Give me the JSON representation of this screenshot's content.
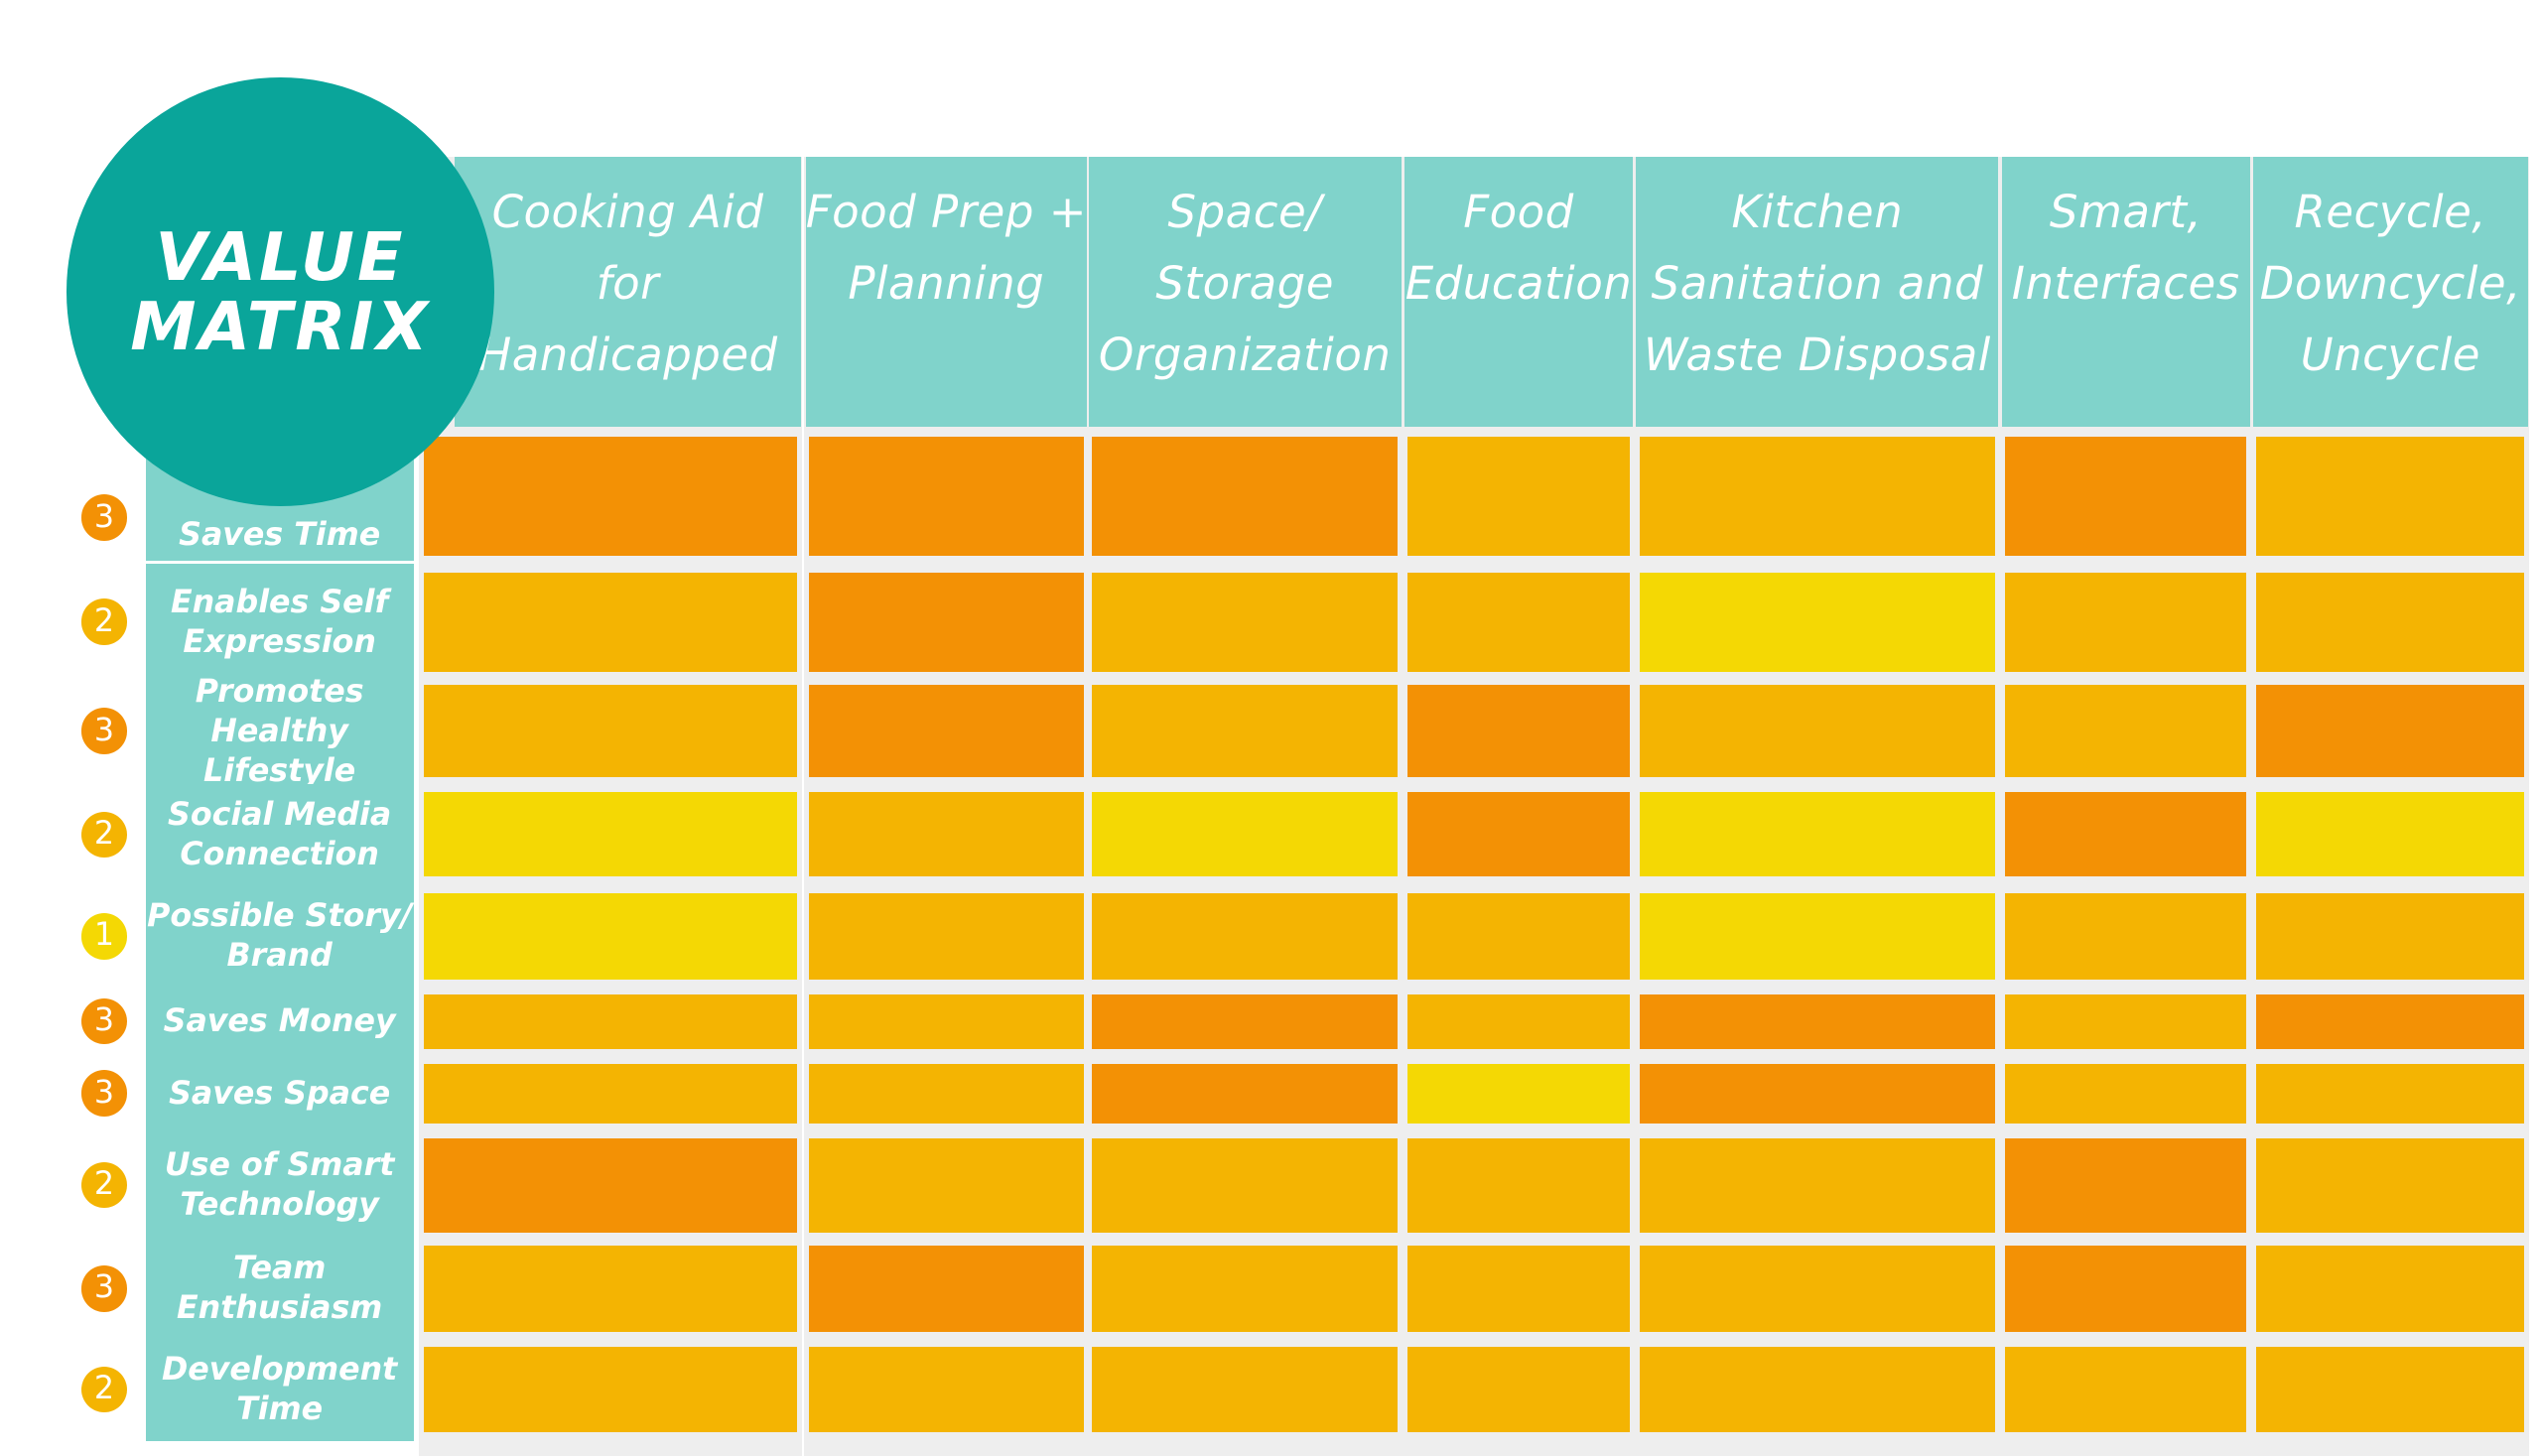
{
  "title": "VALUE\nMATRIX",
  "colors": {
    "score_1": "#f4d804",
    "score_2": "#f4b402",
    "score_3": "#f39105",
    "header_bg": "#80d3cb",
    "title_circle": "#0aa59a"
  },
  "chart_data": {
    "type": "heatmap",
    "columns": [
      "Cooking Aid\nfor\nHandicapped",
      "Food Prep +\nPlanning",
      "Space/\nStorage\nOrganization",
      "Food\nEducation",
      "Kitchen\nSanitation and\nWaste Disposal",
      "Smart,\nInterfaces",
      "Recycle,\nDowncycle,\nUncycle"
    ],
    "rows": [
      {
        "label": "Saves Time",
        "weight": 3,
        "values": [
          3,
          3,
          3,
          2,
          2,
          3,
          2
        ]
      },
      {
        "label": "Enables Self\nExpression",
        "weight": 2,
        "values": [
          2,
          3,
          2,
          2,
          1,
          2,
          2
        ]
      },
      {
        "label": "Promotes\nHealthy Lifestyle",
        "weight": 3,
        "values": [
          2,
          3,
          2,
          3,
          2,
          2,
          3
        ]
      },
      {
        "label": "Social Media\nConnection",
        "weight": 2,
        "values": [
          1,
          2,
          1,
          3,
          1,
          3,
          1
        ]
      },
      {
        "label": "Possible Story/\nBrand",
        "weight": 1,
        "values": [
          1,
          2,
          2,
          2,
          1,
          2,
          2
        ]
      },
      {
        "label": "Saves Money",
        "weight": 3,
        "values": [
          2,
          2,
          3,
          2,
          3,
          2,
          3
        ]
      },
      {
        "label": "Saves Space",
        "weight": 3,
        "values": [
          2,
          2,
          3,
          1,
          3,
          2,
          2
        ]
      },
      {
        "label": "Use of Smart\nTechnology",
        "weight": 2,
        "values": [
          3,
          2,
          2,
          2,
          2,
          3,
          2
        ]
      },
      {
        "label": "Team\nEnthusiasm",
        "weight": 3,
        "values": [
          2,
          3,
          2,
          2,
          2,
          3,
          2
        ]
      },
      {
        "label": "Development\nTime",
        "weight": 2,
        "values": [
          2,
          2,
          2,
          2,
          2,
          2,
          2
        ]
      }
    ]
  }
}
